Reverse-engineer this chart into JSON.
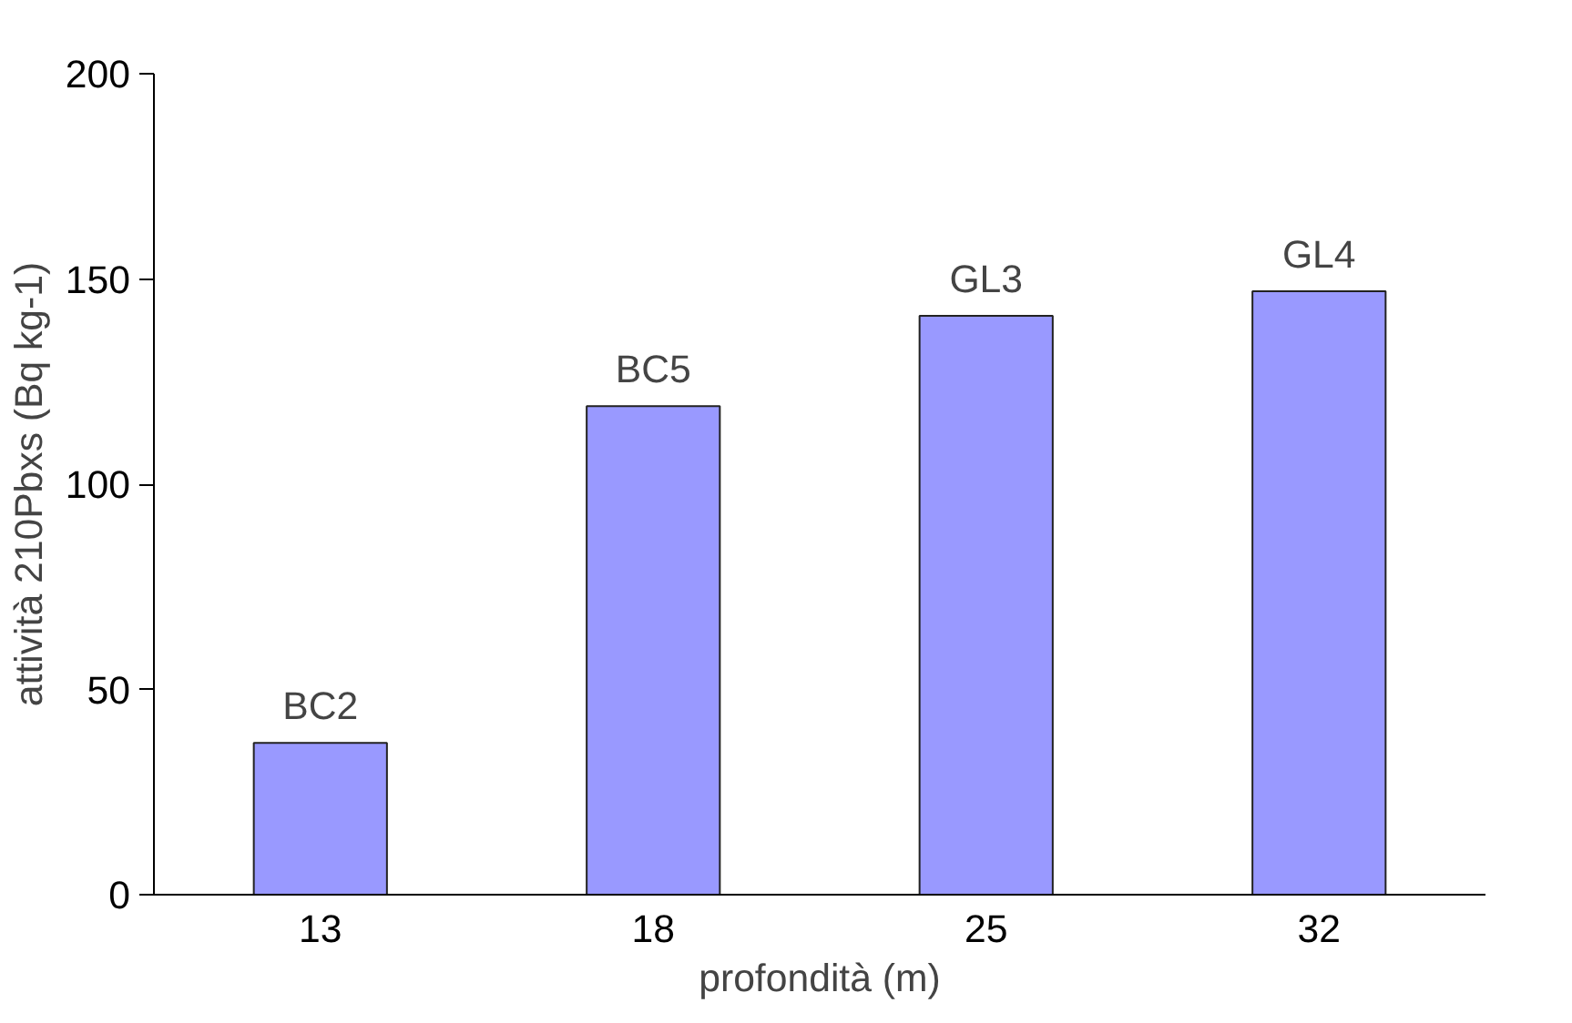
{
  "chart_data": {
    "type": "bar",
    "xlabel": "profondità (m)",
    "ylabel": "attività 210Pbxs (Bq kg-1)",
    "categories": [
      "13",
      "18",
      "25",
      "32"
    ],
    "values": [
      37,
      119,
      141,
      147
    ],
    "color": "#9999ff",
    "ylim": [
      0,
      200
    ],
    "yticks": [
      0,
      50,
      100,
      150,
      200
    ],
    "grid": false,
    "annotations": [
      {
        "text": "BC2",
        "x": "13",
        "y": 37
      },
      {
        "text": "BC5",
        "x": "18",
        "y": 119
      },
      {
        "text": "GL3",
        "x": "25",
        "y": 141
      },
      {
        "text": "GL4",
        "x": "32",
        "y": 147
      }
    ]
  }
}
